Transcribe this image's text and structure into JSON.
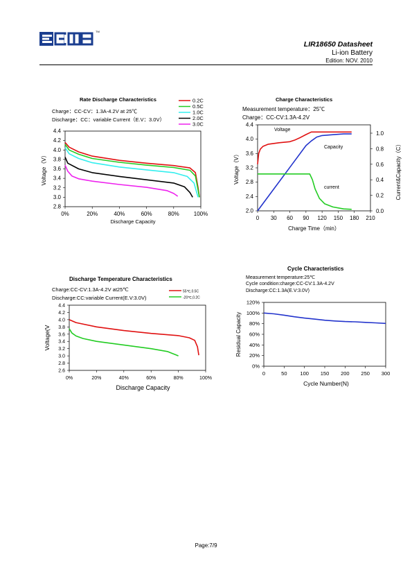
{
  "header": {
    "logo_text": "EMB",
    "tm": "TM",
    "title": "LIR18650 Datasheet",
    "subtitle": "Li-ion Battery",
    "edition": "Edition:   NOV. 2010"
  },
  "footer": {
    "page": "Page:7/9"
  },
  "colors": {
    "red": "#e01010",
    "green": "#22cc22",
    "cyan": "#33eeee",
    "black": "#000000",
    "magenta": "#ee22ee",
    "blue": "#2233cc"
  },
  "chart_data": [
    {
      "type": "line",
      "title": "Rate Discharge Characteristics",
      "notes": [
        "Charge：CC-CV：1.3A-4.2V at 25℃",
        "Discharge：CC：variable Current（E.V：3.0V）"
      ],
      "xlabel": "Discharge Capacity",
      "ylabel": "Voltage（V）",
      "xlim": [
        0,
        100
      ],
      "ylim": [
        2.8,
        4.4
      ],
      "xticks": [
        "0%",
        "20%",
        "40%",
        "60%",
        "80%",
        "100%"
      ],
      "yticks": [
        "2.8",
        "3.0",
        "3.2",
        "3.4",
        "3.6",
        "3.8",
        "4.0",
        "4.2",
        "4.4"
      ],
      "legend_placement": "top-right",
      "series": [
        {
          "name": "0.2C",
          "color": "#e01010",
          "points": [
            [
              0,
              4.16
            ],
            [
              3,
              4.06
            ],
            [
              10,
              3.96
            ],
            [
              20,
              3.87
            ],
            [
              40,
              3.78
            ],
            [
              60,
              3.72
            ],
            [
              80,
              3.67
            ],
            [
              92,
              3.62
            ],
            [
              96,
              3.52
            ],
            [
              98,
              3.2
            ],
            [
              99,
              3.0
            ]
          ]
        },
        {
          "name": "0.5C",
          "color": "#22cc22",
          "points": [
            [
              0,
              4.12
            ],
            [
              3,
              4.0
            ],
            [
              10,
              3.91
            ],
            [
              20,
              3.82
            ],
            [
              40,
              3.74
            ],
            [
              60,
              3.68
            ],
            [
              80,
              3.63
            ],
            [
              92,
              3.57
            ],
            [
              96,
              3.45
            ],
            [
              98,
              3.15
            ],
            [
              99,
              3.0
            ]
          ]
        },
        {
          "name": "1.0C",
          "color": "#33eeee",
          "points": [
            [
              0,
              4.05
            ],
            [
              3,
              3.92
            ],
            [
              10,
              3.82
            ],
            [
              20,
              3.73
            ],
            [
              40,
              3.64
            ],
            [
              60,
              3.58
            ],
            [
              80,
              3.52
            ],
            [
              90,
              3.44
            ],
            [
              95,
              3.3
            ],
            [
              97,
              3.1
            ],
            [
              98,
              3.0
            ]
          ]
        },
        {
          "name": "2.0C",
          "color": "#000000",
          "points": [
            [
              0,
              3.85
            ],
            [
              2,
              3.72
            ],
            [
              10,
              3.6
            ],
            [
              20,
              3.52
            ],
            [
              40,
              3.44
            ],
            [
              60,
              3.37
            ],
            [
              80,
              3.3
            ],
            [
              88,
              3.22
            ],
            [
              92,
              3.1
            ],
            [
              94,
              3.0
            ]
          ]
        },
        {
          "name": "3.0C",
          "color": "#ee22ee",
          "points": [
            [
              0,
              3.68
            ],
            [
              2,
              3.55
            ],
            [
              5,
              3.45
            ],
            [
              10,
              3.39
            ],
            [
              20,
              3.34
            ],
            [
              40,
              3.27
            ],
            [
              60,
              3.21
            ],
            [
              75,
              3.14
            ],
            [
              80,
              3.08
            ],
            [
              83,
              3.02
            ]
          ]
        }
      ]
    },
    {
      "type": "line",
      "title": "Charge Characteristics",
      "notes": [
        "Measurement temperature：25℃",
        "Charge：CC-CV:1.3A-4.2V"
      ],
      "xlabel": "Charge Time（min）",
      "ylabel": "Voltage（V）",
      "ylabel2": "Current&Capacity（C）",
      "xlim": [
        0,
        210
      ],
      "ylim": [
        2.0,
        4.4
      ],
      "ylim2": [
        0,
        1.0
      ],
      "xticks": [
        "0",
        "30",
        "60",
        "90",
        "120",
        "150",
        "180",
        "210"
      ],
      "yticks": [
        "2.0",
        "2.4",
        "2.8",
        "3.2",
        "3.6",
        "4.0",
        "4.4"
      ],
      "yticks2": [
        "0.0",
        "0.2",
        "0.4",
        "0.6",
        "0.8",
        "1.0"
      ],
      "annotations": [
        "Voltage",
        "Capacity",
        "current"
      ],
      "series": [
        {
          "name": "Voltage",
          "axis": "left",
          "color": "#e01010",
          "points": [
            [
              0,
              3.3
            ],
            [
              2,
              3.6
            ],
            [
              5,
              3.72
            ],
            [
              10,
              3.8
            ],
            [
              20,
              3.86
            ],
            [
              40,
              3.9
            ],
            [
              60,
              3.93
            ],
            [
              70,
              3.98
            ],
            [
              80,
              4.05
            ],
            [
              90,
              4.13
            ],
            [
              100,
              4.2
            ],
            [
              120,
              4.2
            ],
            [
              150,
              4.2
            ],
            [
              175,
              4.2
            ]
          ]
        },
        {
          "name": "Capacity",
          "axis": "right",
          "color": "#2233cc",
          "points": [
            [
              0,
              0
            ],
            [
              30,
              0.28
            ],
            [
              60,
              0.56
            ],
            [
              90,
              0.84
            ],
            [
              100,
              0.9
            ],
            [
              110,
              0.95
            ],
            [
              120,
              0.97
            ],
            [
              140,
              0.98
            ],
            [
              160,
              0.99
            ],
            [
              175,
              0.99
            ]
          ]
        },
        {
          "name": "current",
          "axis": "right",
          "color": "#22cc22",
          "points": [
            [
              0,
              0.475
            ],
            [
              90,
              0.475
            ],
            [
              97,
              0.475
            ],
            [
              102,
              0.4
            ],
            [
              107,
              0.28
            ],
            [
              115,
              0.16
            ],
            [
              125,
              0.09
            ],
            [
              140,
              0.05
            ],
            [
              160,
              0.025
            ],
            [
              175,
              0.02
            ]
          ]
        }
      ]
    },
    {
      "type": "line",
      "title": "Discharge Temperature Characteristics",
      "notes": [
        "Charge:CC-CV:1.3A-4.2V  at25℃",
        "Discharge:CC:variable Current(E.V:3.0V)"
      ],
      "xlabel": "Discharge Capacity",
      "ylabel": "Voltage(V",
      "xlim": [
        0,
        100
      ],
      "ylim": [
        2.6,
        4.4
      ],
      "xticks": [
        "0%",
        "20%",
        "40%",
        "60%",
        "80%",
        "100%"
      ],
      "yticks": [
        "2.6",
        "2.8",
        "3.0",
        "3.2",
        "3.4",
        "3.6",
        "3.8",
        "4.0",
        "4.2",
        "4.4"
      ],
      "legend_placement": "top-right",
      "series": [
        {
          "name": "55℃,0.5C",
          "color": "#e01010",
          "points": [
            [
              0,
              4.0
            ],
            [
              5,
              3.92
            ],
            [
              20,
              3.8
            ],
            [
              40,
              3.7
            ],
            [
              60,
              3.62
            ],
            [
              80,
              3.56
            ],
            [
              88,
              3.5
            ],
            [
              92,
              3.43
            ],
            [
              94,
              3.25
            ],
            [
              95,
              3.02
            ]
          ]
        },
        {
          "name": "-20℃,0.2C",
          "color": "#22cc22",
          "points": [
            [
              0,
              3.75
            ],
            [
              2,
              3.63
            ],
            [
              5,
              3.55
            ],
            [
              10,
              3.48
            ],
            [
              20,
              3.4
            ],
            [
              40,
              3.3
            ],
            [
              60,
              3.2
            ],
            [
              72,
              3.12
            ],
            [
              78,
              3.03
            ],
            [
              80,
              3.0
            ]
          ]
        }
      ]
    },
    {
      "type": "line",
      "title": "Cycle Characteristics",
      "notes": [
        "Measurement temperature:25℃",
        "Cycle condition:charge:CC-CV:1.3A-4.2V",
        "Discharge:CC:1.3A(E.V:3.0V)"
      ],
      "xlabel": "Cycle Number(N)",
      "ylabel": "Residual Capacity",
      "xlim": [
        0,
        300
      ],
      "ylim": [
        0,
        120
      ],
      "xticks": [
        "0",
        "50",
        "100",
        "150",
        "200",
        "250",
        "300"
      ],
      "yticks": [
        "0%",
        "20%",
        "40%",
        "60%",
        "80%",
        "100%",
        "120%"
      ],
      "series": [
        {
          "name": "",
          "color": "#2233cc",
          "points": [
            [
              0,
              100
            ],
            [
              25,
              98.5
            ],
            [
              50,
              96
            ],
            [
              75,
              93
            ],
            [
              100,
              90.5
            ],
            [
              125,
              88.5
            ],
            [
              150,
              86.5
            ],
            [
              175,
              85
            ],
            [
              200,
              84
            ],
            [
              225,
              83.5
            ],
            [
              250,
              82.5
            ],
            [
              275,
              81.5
            ],
            [
              300,
              80.5
            ]
          ]
        }
      ]
    }
  ]
}
